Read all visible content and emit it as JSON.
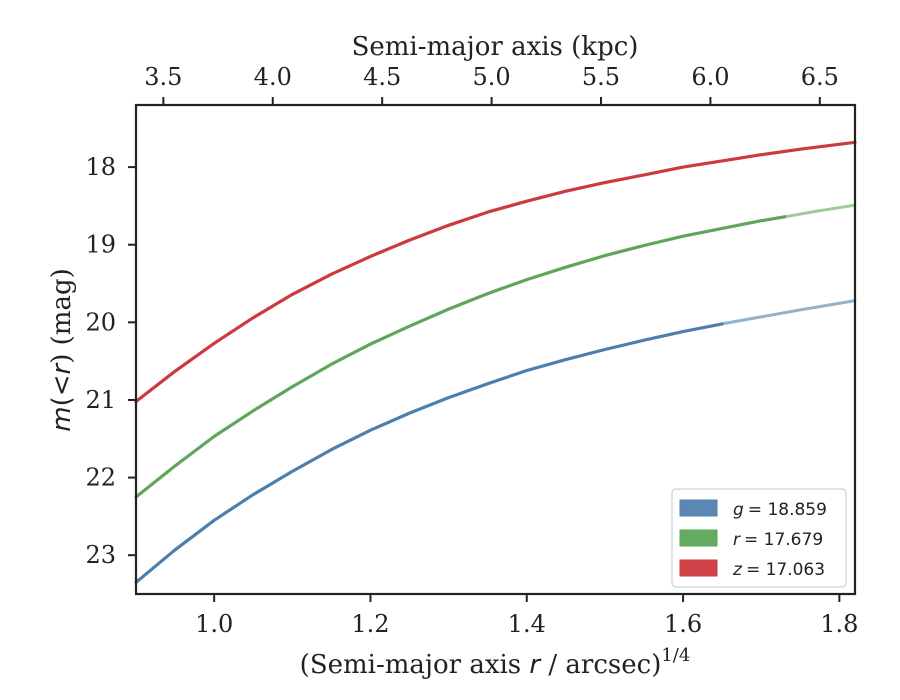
{
  "chart_data": {
    "type": "line",
    "xlabel": "(Semi-major axis r / arcsec)",
    "xlabel_parts": {
      "pre": "(Semi-major axis ",
      "var": "r",
      "post": " / arcsec)",
      "sup": "1/4"
    },
    "ylabel": "m(< r) (mag)",
    "ylabel_parts": {
      "var1": "m",
      "mid": "(<",
      "var2": "r",
      "post": ") (mag)"
    },
    "top_xlabel": "Semi-major axis (kpc)",
    "xlim": [
      0.9,
      1.82
    ],
    "ylim": [
      23.5,
      17.2
    ],
    "y_inverted": true,
    "x_ticks": [
      "1.0",
      "1.2",
      "1.4",
      "1.6",
      "1.8"
    ],
    "x_tick_values": [
      1.0,
      1.2,
      1.4,
      1.6,
      1.8
    ],
    "y_ticks": [
      "18",
      "19",
      "20",
      "21",
      "22",
      "23"
    ],
    "y_tick_values": [
      18,
      19,
      20,
      21,
      22,
      23
    ],
    "top_x_ticks": [
      "3.5",
      "4.0",
      "4.5",
      "5.0",
      "5.5",
      "6.0",
      "6.5"
    ],
    "top_x_tick_values": [
      3.5,
      4.0,
      4.5,
      5.0,
      5.5,
      6.0,
      6.5
    ],
    "top_x_tick_positions_bottom_units": [
      0.935,
      1.075,
      1.215,
      1.355,
      1.495,
      1.635,
      1.775
    ],
    "grid": false,
    "legend_placement": "bottom-right",
    "series": [
      {
        "name": "g = 18.859",
        "legend_var": "g",
        "legend_value": "= 18.859",
        "color": "#4d7fad",
        "faded_color": "#93b2c9",
        "solid_until": 1.65,
        "x": [
          0.9,
          0.95,
          1.0,
          1.05,
          1.1,
          1.15,
          1.2,
          1.25,
          1.3,
          1.35,
          1.4,
          1.45,
          1.5,
          1.55,
          1.6,
          1.65,
          1.7,
          1.75,
          1.82
        ],
        "y": [
          23.35,
          22.93,
          22.55,
          22.22,
          21.92,
          21.64,
          21.39,
          21.17,
          20.97,
          20.79,
          20.62,
          20.48,
          20.35,
          20.23,
          20.12,
          20.02,
          19.93,
          19.84,
          19.72
        ]
      },
      {
        "name": "r = 17.679",
        "legend_var": "r",
        "legend_value": "= 17.679",
        "color": "#5fa55a",
        "faded_color": "#9fcb99",
        "solid_until": 1.73,
        "x": [
          0.9,
          0.95,
          1.0,
          1.05,
          1.1,
          1.15,
          1.2,
          1.25,
          1.3,
          1.35,
          1.4,
          1.45,
          1.5,
          1.55,
          1.6,
          1.65,
          1.7,
          1.73,
          1.77,
          1.82
        ],
        "y": [
          22.25,
          21.85,
          21.47,
          21.14,
          20.83,
          20.54,
          20.28,
          20.05,
          19.83,
          19.63,
          19.45,
          19.29,
          19.14,
          19.01,
          18.89,
          18.79,
          18.69,
          18.64,
          18.57,
          18.49
        ]
      },
      {
        "name": "z = 17.063",
        "legend_var": "z",
        "legend_value": "= 17.063",
        "color": "#cc3a3f",
        "faded_color": "#e08a8d",
        "solid_until": 1.82,
        "x": [
          0.9,
          0.95,
          1.0,
          1.05,
          1.1,
          1.15,
          1.2,
          1.25,
          1.3,
          1.35,
          1.4,
          1.45,
          1.5,
          1.55,
          1.6,
          1.65,
          1.7,
          1.75,
          1.82
        ],
        "y": [
          21.02,
          20.63,
          20.27,
          19.94,
          19.64,
          19.38,
          19.15,
          18.94,
          18.75,
          18.58,
          18.44,
          18.31,
          18.2,
          18.1,
          18.0,
          17.92,
          17.84,
          17.77,
          17.68
        ]
      }
    ]
  }
}
